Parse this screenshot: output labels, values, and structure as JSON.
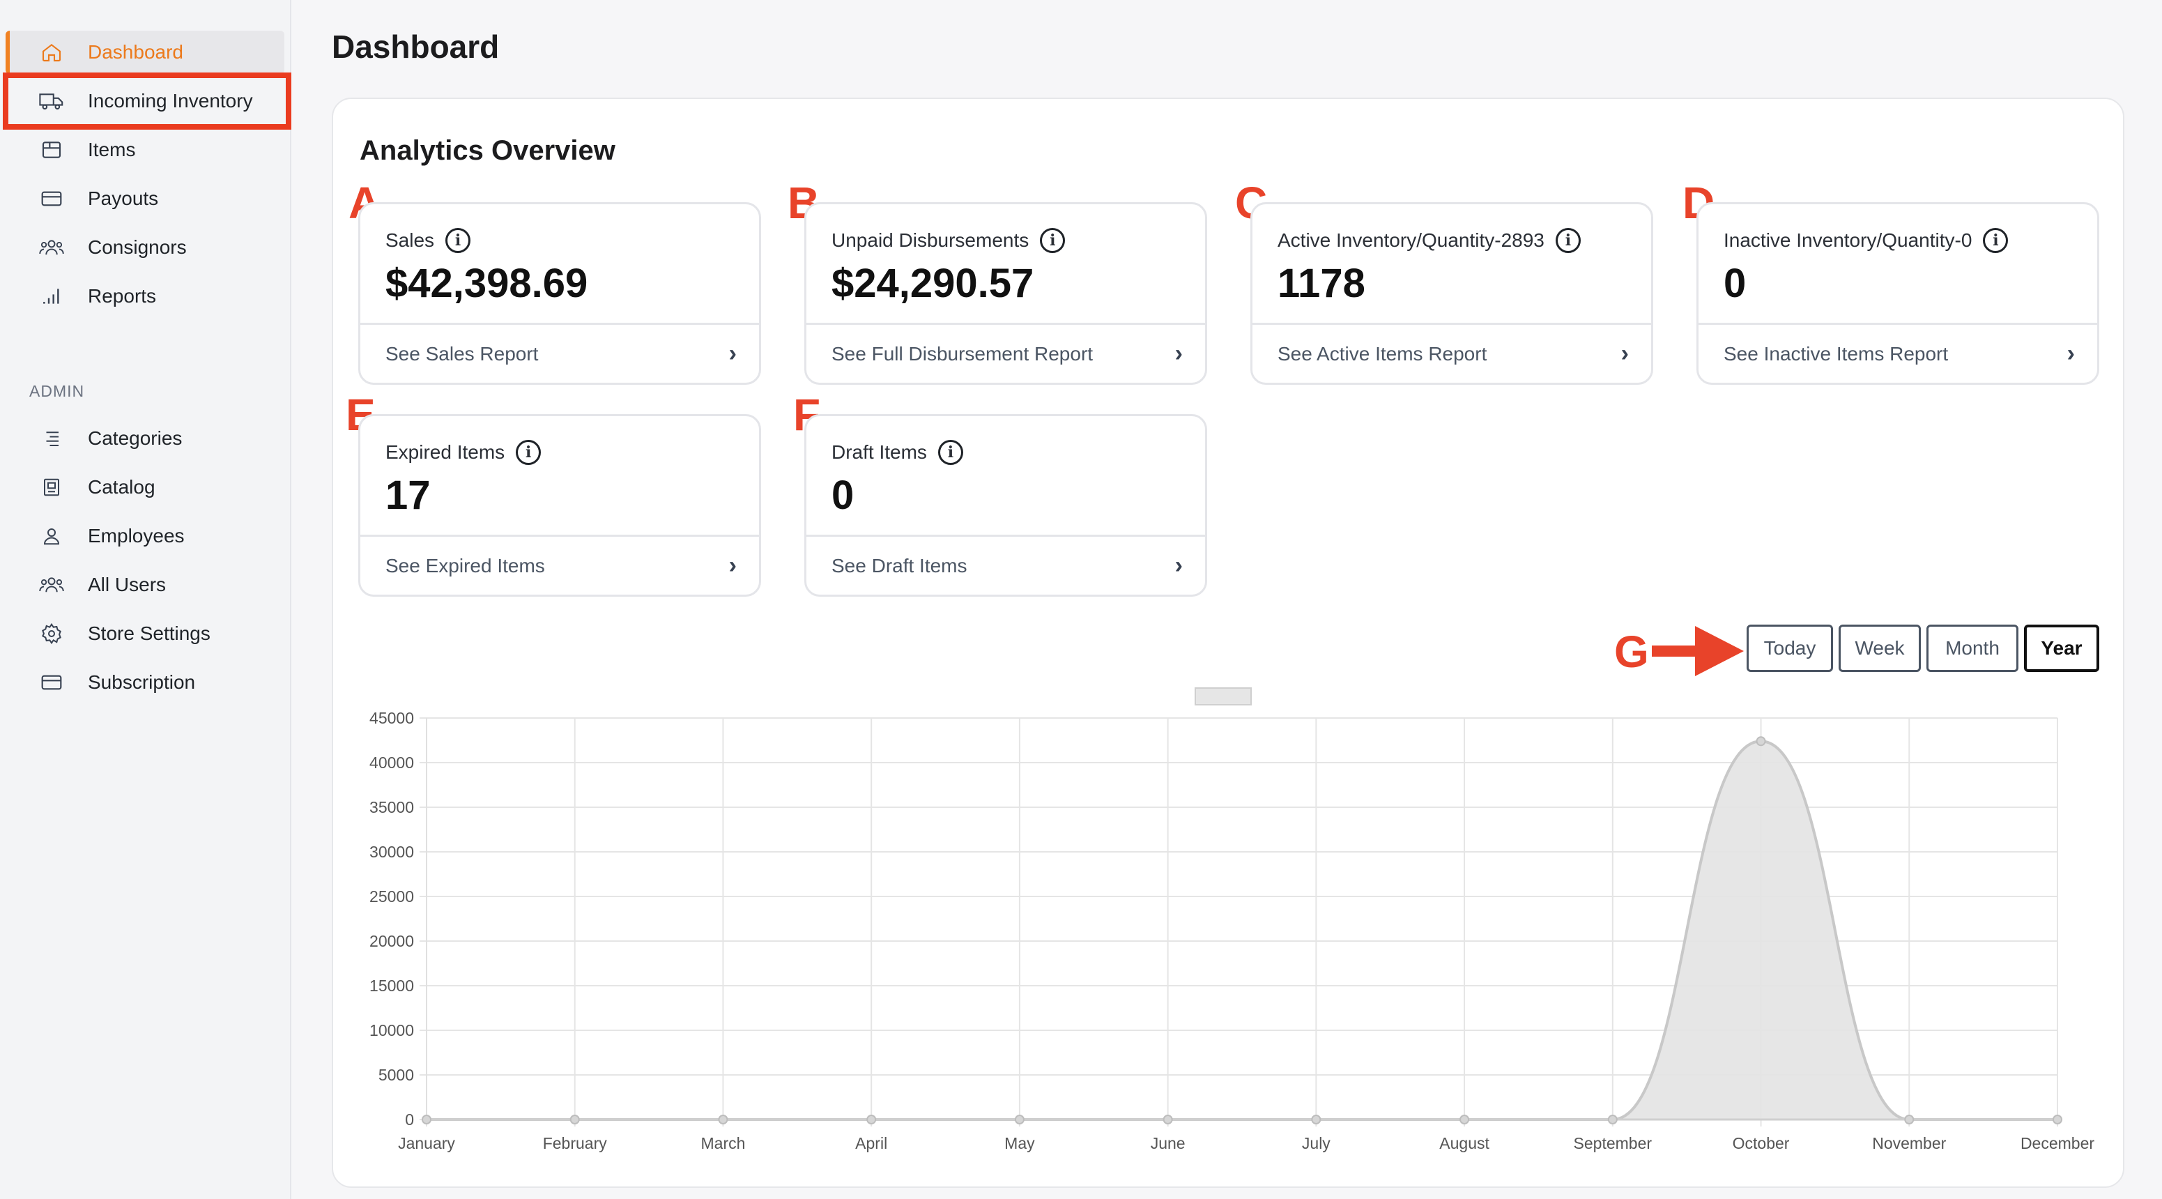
{
  "sidebar": {
    "items": [
      {
        "label": "Dashboard",
        "icon": "home-icon"
      },
      {
        "label": "Incoming Inventory",
        "icon": "truck-icon"
      },
      {
        "label": "Items",
        "icon": "box-icon"
      },
      {
        "label": "Payouts",
        "icon": "credit-card-icon"
      },
      {
        "label": "Consignors",
        "icon": "users-icon"
      },
      {
        "label": "Reports",
        "icon": "bar-signal-icon"
      }
    ],
    "admin_heading": "ADMIN",
    "admin_items": [
      {
        "label": "Categories",
        "icon": "list-icon"
      },
      {
        "label": "Catalog",
        "icon": "book-icon"
      },
      {
        "label": "Employees",
        "icon": "user-icon"
      },
      {
        "label": "All Users",
        "icon": "users-icon"
      },
      {
        "label": "Store Settings",
        "icon": "gear-icon"
      },
      {
        "label": "Subscription",
        "icon": "credit-card-icon"
      }
    ]
  },
  "page": {
    "title": "Dashboard"
  },
  "panel": {
    "title": "Analytics Overview"
  },
  "cards": [
    {
      "marker": "A",
      "title": "Sales",
      "value": "$42,398.69",
      "link": "See Sales Report"
    },
    {
      "marker": "B",
      "title": "Unpaid Disbursements",
      "value": "$24,290.57",
      "link": "See Full Disbursement Report"
    },
    {
      "marker": "C",
      "title": "Active Inventory/Quantity-2893",
      "value": "1178",
      "link": "See Active Items Report"
    },
    {
      "marker": "D",
      "title": "Inactive Inventory/Quantity-0",
      "value": "0",
      "link": "See Inactive Items Report"
    },
    {
      "marker": "E",
      "title": "Expired Items",
      "value": "17",
      "link": "See Expired Items"
    },
    {
      "marker": "F",
      "title": "Draft Items",
      "value": "0",
      "link": "See Draft Items"
    }
  ],
  "annotation": {
    "marker": "G"
  },
  "timeframe": {
    "buttons": [
      "Today",
      "Week",
      "Month",
      "Year"
    ],
    "selected": "Year"
  },
  "colors": {
    "accent": "#ec7a1c",
    "annotation": "#e8432a",
    "area_fill": "#e3e3e3",
    "area_stroke": "#c8c8c8"
  },
  "chart_data": {
    "type": "area",
    "categories": [
      "January",
      "February",
      "March",
      "April",
      "May",
      "June",
      "July",
      "August",
      "September",
      "October",
      "November",
      "December"
    ],
    "values": [
      0,
      0,
      0,
      0,
      0,
      0,
      0,
      0,
      0,
      42400,
      0,
      0
    ],
    "yticks": [
      "45000",
      "40000",
      "35000",
      "30000",
      "25000",
      "20000",
      "15000",
      "10000",
      "5000",
      "0"
    ],
    "ylim": [
      0,
      45000
    ],
    "grid": true,
    "legend": "top-center"
  }
}
